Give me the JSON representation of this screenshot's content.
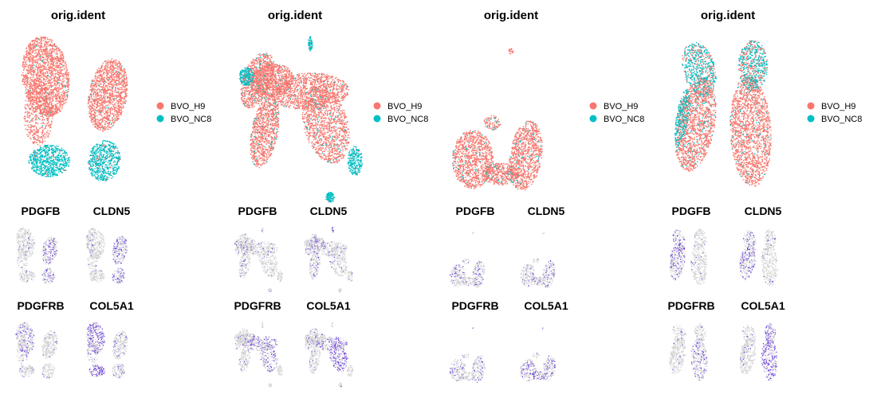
{
  "chart_data": {
    "type": "scatter",
    "description_kind": "UMAP embeddings of four samples; top row colored by orig.ident, bottom grids show feature expression",
    "palette": {
      "BVO_H9": "#F8766D",
      "BVO_NC8": "#00BFC4",
      "expr_low": "#D3D3D3",
      "expr_high": "#5B2BD8"
    },
    "panels": [
      {
        "title": "orig.ident",
        "legend": [
          {
            "label": "BVO_H9",
            "color": "#F8766D"
          },
          {
            "label": "BVO_NC8",
            "color": "#00BFC4"
          }
        ],
        "features": [
          "PDGFB",
          "CLDN5",
          "PDGFRB",
          "COL5A1"
        ]
      },
      {
        "title": "orig.ident",
        "legend": [
          {
            "label": "BVO_H9",
            "color": "#F8766D"
          },
          {
            "label": "BVO_NC8",
            "color": "#00BFC4"
          }
        ],
        "features": [
          "PDGFB",
          "CLDN5",
          "PDGFRB",
          "COL5A1"
        ]
      },
      {
        "title": "orig.ident",
        "legend": [
          {
            "label": "BVO_H9",
            "color": "#F8766D"
          },
          {
            "label": "BVO_NC8",
            "color": "#00BFC4"
          }
        ],
        "features": [
          "PDGFB",
          "CLDN5",
          "PDGFRB",
          "COL5A1"
        ]
      },
      {
        "title": "orig.ident",
        "legend": [
          {
            "label": "BVO_H9",
            "color": "#F8766D"
          },
          {
            "label": "BVO_NC8",
            "color": "#00BFC4"
          }
        ],
        "features": [
          "PDGFB",
          "CLDN5",
          "PDGFRB",
          "COL5A1"
        ]
      }
    ]
  }
}
